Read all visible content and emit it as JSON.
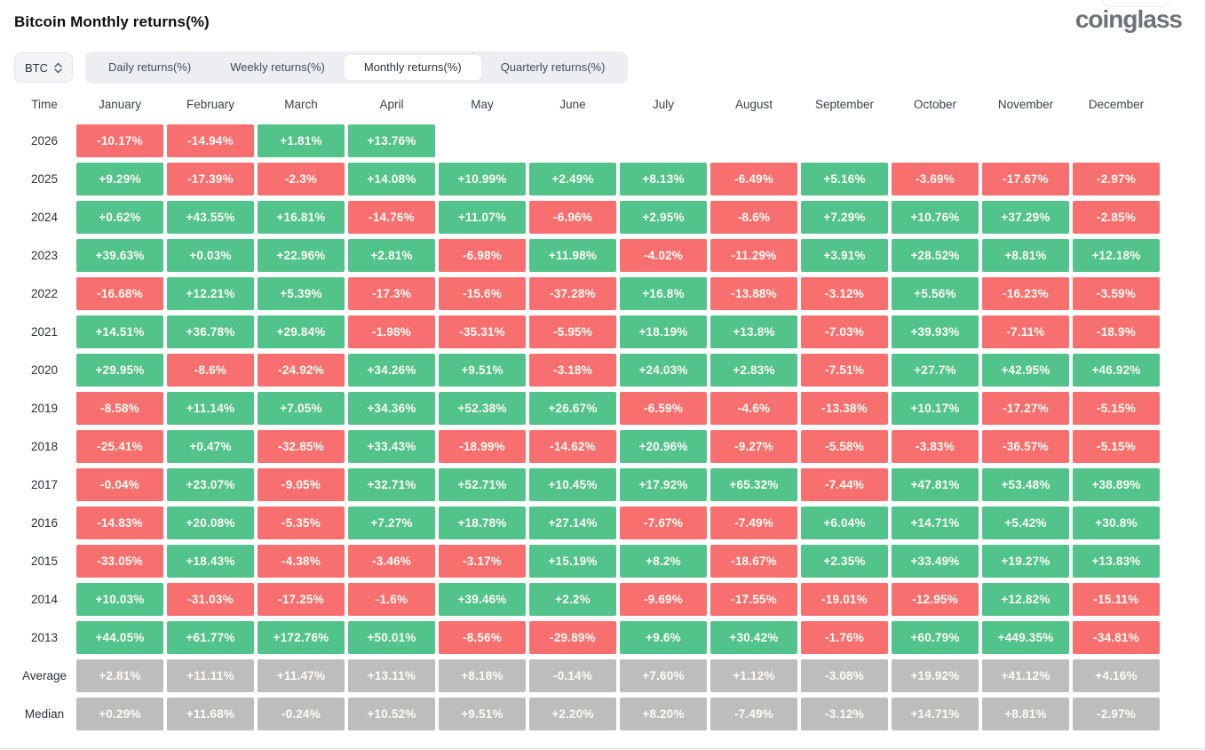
{
  "page": {
    "title": "Bitcoin Monthly returns(%)",
    "logo": "coinglass"
  },
  "controls": {
    "symbol_select": {
      "value": "BTC"
    },
    "tabs": [
      {
        "label": "Daily returns(%)",
        "selected": false
      },
      {
        "label": "Weekly returns(%)",
        "selected": false
      },
      {
        "label": "Monthly returns(%)",
        "selected": true
      },
      {
        "label": "Quarterly returns(%)",
        "selected": false
      }
    ]
  },
  "chart_data": {
    "type": "heatmap",
    "title": "Bitcoin Monthly returns(%)",
    "row_header": "Time",
    "columns": [
      "January",
      "February",
      "March",
      "April",
      "May",
      "June",
      "July",
      "August",
      "September",
      "October",
      "November",
      "December"
    ],
    "colors": {
      "positive": "#52c38b",
      "negative": "#f7706f",
      "summary": "#bdbdbd"
    },
    "rows": [
      {
        "label": "2026",
        "summary": false,
        "values": [
          "-10.17%",
          "-14.94%",
          "+1.81%",
          "+13.76%",
          "",
          "",
          "",
          "",
          "",
          "",
          "",
          ""
        ]
      },
      {
        "label": "2025",
        "summary": false,
        "values": [
          "+9.29%",
          "-17.39%",
          "-2.3%",
          "+14.08%",
          "+10.99%",
          "+2.49%",
          "+8.13%",
          "-6.49%",
          "+5.16%",
          "-3.69%",
          "-17.67%",
          "-2.97%"
        ]
      },
      {
        "label": "2024",
        "summary": false,
        "values": [
          "+0.62%",
          "+43.55%",
          "+16.81%",
          "-14.76%",
          "+11.07%",
          "-6.96%",
          "+2.95%",
          "-8.6%",
          "+7.29%",
          "+10.76%",
          "+37.29%",
          "-2.85%"
        ]
      },
      {
        "label": "2023",
        "summary": false,
        "values": [
          "+39.63%",
          "+0.03%",
          "+22.96%",
          "+2.81%",
          "-6.98%",
          "+11.98%",
          "-4.02%",
          "-11.29%",
          "+3.91%",
          "+28.52%",
          "+8.81%",
          "+12.18%"
        ]
      },
      {
        "label": "2022",
        "summary": false,
        "values": [
          "-16.68%",
          "+12.21%",
          "+5.39%",
          "-17.3%",
          "-15.6%",
          "-37.28%",
          "+16.8%",
          "-13.88%",
          "-3.12%",
          "+5.56%",
          "-16.23%",
          "-3.59%"
        ]
      },
      {
        "label": "2021",
        "summary": false,
        "values": [
          "+14.51%",
          "+36.78%",
          "+29.84%",
          "-1.98%",
          "-35.31%",
          "-5.95%",
          "+18.19%",
          "+13.8%",
          "-7.03%",
          "+39.93%",
          "-7.11%",
          "-18.9%"
        ]
      },
      {
        "label": "2020",
        "summary": false,
        "values": [
          "+29.95%",
          "-8.6%",
          "-24.92%",
          "+34.26%",
          "+9.51%",
          "-3.18%",
          "+24.03%",
          "+2.83%",
          "-7.51%",
          "+27.7%",
          "+42.95%",
          "+46.92%"
        ]
      },
      {
        "label": "2019",
        "summary": false,
        "values": [
          "-8.58%",
          "+11.14%",
          "+7.05%",
          "+34.36%",
          "+52.38%",
          "+26.67%",
          "-6.59%",
          "-4.6%",
          "-13.38%",
          "+10.17%",
          "-17.27%",
          "-5.15%"
        ]
      },
      {
        "label": "2018",
        "summary": false,
        "values": [
          "-25.41%",
          "+0.47%",
          "-32.85%",
          "+33.43%",
          "-18.99%",
          "-14.62%",
          "+20.96%",
          "-9.27%",
          "-5.58%",
          "-3.83%",
          "-36.57%",
          "-5.15%"
        ]
      },
      {
        "label": "2017",
        "summary": false,
        "values": [
          "-0.04%",
          "+23.07%",
          "-9.05%",
          "+32.71%",
          "+52.71%",
          "+10.45%",
          "+17.92%",
          "+65.32%",
          "-7.44%",
          "+47.81%",
          "+53.48%",
          "+38.89%"
        ]
      },
      {
        "label": "2016",
        "summary": false,
        "values": [
          "-14.83%",
          "+20.08%",
          "-5.35%",
          "+7.27%",
          "+18.78%",
          "+27.14%",
          "-7.67%",
          "-7.49%",
          "+6.04%",
          "+14.71%",
          "+5.42%",
          "+30.8%"
        ]
      },
      {
        "label": "2015",
        "summary": false,
        "values": [
          "-33.05%",
          "+18.43%",
          "-4.38%",
          "-3.46%",
          "-3.17%",
          "+15.19%",
          "+8.2%",
          "-18.67%",
          "+2.35%",
          "+33.49%",
          "+19.27%",
          "+13.83%"
        ]
      },
      {
        "label": "2014",
        "summary": false,
        "values": [
          "+10.03%",
          "-31.03%",
          "-17.25%",
          "-1.6%",
          "+39.46%",
          "+2.2%",
          "-9.69%",
          "-17.55%",
          "-19.01%",
          "-12.95%",
          "+12.82%",
          "-15.11%"
        ]
      },
      {
        "label": "2013",
        "summary": false,
        "values": [
          "+44.05%",
          "+61.77%",
          "+172.76%",
          "+50.01%",
          "-8.56%",
          "-29.89%",
          "+9.6%",
          "+30.42%",
          "-1.76%",
          "+60.79%",
          "+449.35%",
          "-34.81%"
        ]
      },
      {
        "label": "Average",
        "summary": true,
        "values": [
          "+2.81%",
          "+11.11%",
          "+11.47%",
          "+13.11%",
          "+8.18%",
          "-0.14%",
          "+7.60%",
          "+1.12%",
          "-3.08%",
          "+19.92%",
          "+41.12%",
          "+4.16%"
        ]
      },
      {
        "label": "Median",
        "summary": true,
        "values": [
          "+0.29%",
          "+11.68%",
          "-0.24%",
          "+10.52%",
          "+9.51%",
          "+2.20%",
          "+8.20%",
          "-7.49%",
          "-3.12%",
          "+14.71%",
          "+8.81%",
          "-2.97%"
        ]
      }
    ]
  }
}
